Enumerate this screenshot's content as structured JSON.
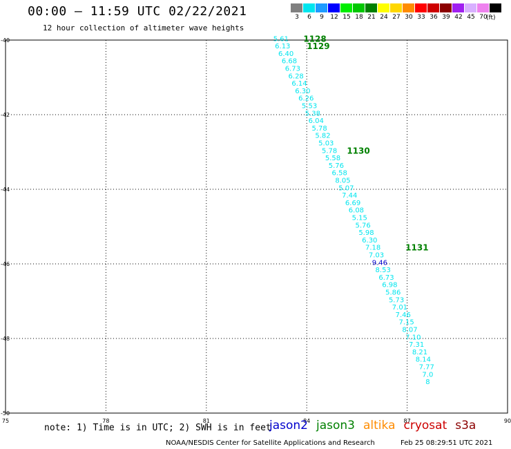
{
  "header": {
    "title": "00:00 – 11:59 UTC 02/22/2021",
    "subtitle": "12 hour collection of altimeter wave heights"
  },
  "scale": {
    "unit": "(ft)",
    "bins": [
      {
        "label": "3",
        "color": "#808080"
      },
      {
        "label": "6",
        "color": "#00e5ee"
      },
      {
        "label": "9",
        "color": "#1e9bff"
      },
      {
        "label": "12",
        "color": "#0000ff"
      },
      {
        "label": "15",
        "color": "#00ee00"
      },
      {
        "label": "18",
        "color": "#00c800"
      },
      {
        "label": "21",
        "color": "#008000"
      },
      {
        "label": "24",
        "color": "#ffff00"
      },
      {
        "label": "27",
        "color": "#ffd700"
      },
      {
        "label": "30",
        "color": "#ff8c00"
      },
      {
        "label": "33",
        "color": "#ff0000"
      },
      {
        "label": "36",
        "color": "#cd0000"
      },
      {
        "label": "39",
        "color": "#8b0000"
      },
      {
        "label": "42",
        "color": "#a020f0"
      },
      {
        "label": "45",
        "color": "#d8b0ff"
      },
      {
        "label": "70",
        "color": "#ee82ee"
      },
      {
        "label": "",
        "color": "#000000"
      }
    ]
  },
  "footer": {
    "note": "note: 1) Time is in UTC; 2) SWH is in feet",
    "credit": "NOAA/NESDIS Center for Satellite Applications and Research",
    "timestamp": "Feb 25 08:29:51 UTC 2021"
  },
  "legend": [
    {
      "name": "jason2",
      "color": "#0000cd"
    },
    {
      "name": "jason3",
      "color": "#008000"
    },
    {
      "name": "altika",
      "color": "#ff8c00"
    },
    {
      "name": "cryosat",
      "color": "#cd0000"
    },
    {
      "name": "s3a",
      "color": "#8b0000"
    }
  ],
  "chart_data": {
    "type": "scatter",
    "xlim": [
      75,
      90
    ],
    "ylim": [
      -50,
      -40
    ],
    "x_ticks": [
      "75",
      "78",
      "81",
      "84",
      "87",
      "90"
    ],
    "y_ticks": [
      "-40",
      "-42",
      "-44",
      "-46",
      "-48",
      "-50"
    ],
    "grid": true,
    "points": [
      {
        "x": 83.0,
        "y": -39.95,
        "label": "5.61",
        "color": "#00e5ee"
      },
      {
        "x": 83.05,
        "y": -40.15,
        "label": "6.13",
        "color": "#00e5ee"
      },
      {
        "x": 83.15,
        "y": -40.35,
        "label": "6.40",
        "color": "#00e5ee"
      },
      {
        "x": 83.25,
        "y": -40.55,
        "label": "6.68",
        "color": "#00e5ee"
      },
      {
        "x": 83.35,
        "y": -40.75,
        "label": "6.73",
        "color": "#00e5ee"
      },
      {
        "x": 83.45,
        "y": -40.95,
        "label": "6.28",
        "color": "#00e5ee"
      },
      {
        "x": 83.55,
        "y": -41.15,
        "label": "6.14",
        "color": "#00e5ee"
      },
      {
        "x": 83.65,
        "y": -41.35,
        "label": "6.30",
        "color": "#00e5ee"
      },
      {
        "x": 83.75,
        "y": -41.55,
        "label": "6.26",
        "color": "#00e5ee"
      },
      {
        "x": 83.85,
        "y": -41.75,
        "label": "5.53",
        "color": "#00e5ee"
      },
      {
        "x": 83.95,
        "y": -41.95,
        "label": "5.38",
        "color": "#00e5ee"
      },
      {
        "x": 84.05,
        "y": -42.15,
        "label": "6.04",
        "color": "#00e5ee"
      },
      {
        "x": 84.15,
        "y": -42.35,
        "label": "5.78",
        "color": "#00e5ee"
      },
      {
        "x": 84.25,
        "y": -42.55,
        "label": "5.82",
        "color": "#00e5ee"
      },
      {
        "x": 84.35,
        "y": -42.75,
        "label": "5.03",
        "color": "#00e5ee"
      },
      {
        "x": 84.45,
        "y": -42.95,
        "label": "5.78",
        "color": "#00e5ee"
      },
      {
        "x": 84.55,
        "y": -43.15,
        "label": "5.58",
        "color": "#00e5ee"
      },
      {
        "x": 84.65,
        "y": -43.35,
        "label": "5.76",
        "color": "#00e5ee"
      },
      {
        "x": 84.75,
        "y": -43.55,
        "label": "6.58",
        "color": "#00e5ee"
      },
      {
        "x": 84.85,
        "y": -43.75,
        "label": "8.05",
        "color": "#00e5ee"
      },
      {
        "x": 84.95,
        "y": -43.95,
        "label": "5.07",
        "color": "#00e5ee"
      },
      {
        "x": 85.05,
        "y": -44.15,
        "label": "7.44",
        "color": "#00e5ee"
      },
      {
        "x": 85.15,
        "y": -44.35,
        "label": "6.69",
        "color": "#00e5ee"
      },
      {
        "x": 85.25,
        "y": -44.55,
        "label": "6.08",
        "color": "#00e5ee"
      },
      {
        "x": 85.35,
        "y": -44.75,
        "label": "5.15",
        "color": "#00e5ee"
      },
      {
        "x": 85.45,
        "y": -44.95,
        "label": "5.76",
        "color": "#00e5ee"
      },
      {
        "x": 85.55,
        "y": -45.15,
        "label": "5.98",
        "color": "#00e5ee"
      },
      {
        "x": 85.65,
        "y": -45.35,
        "label": "6.30",
        "color": "#00e5ee"
      },
      {
        "x": 85.75,
        "y": -45.55,
        "label": "7.18",
        "color": "#00e5ee"
      },
      {
        "x": 85.85,
        "y": -45.75,
        "label": "7.03",
        "color": "#00e5ee"
      },
      {
        "x": 85.95,
        "y": -45.95,
        "label": "9.46",
        "color": "#0000cd"
      },
      {
        "x": 86.05,
        "y": -46.15,
        "label": "8.53",
        "color": "#00e5ee"
      },
      {
        "x": 86.15,
        "y": -46.35,
        "label": "6.73",
        "color": "#00e5ee"
      },
      {
        "x": 86.25,
        "y": -46.55,
        "label": "6.98",
        "color": "#00e5ee"
      },
      {
        "x": 86.35,
        "y": -46.75,
        "label": "5.86",
        "color": "#00e5ee"
      },
      {
        "x": 86.45,
        "y": -46.95,
        "label": "5.73",
        "color": "#00e5ee"
      },
      {
        "x": 86.55,
        "y": -47.15,
        "label": "7.01",
        "color": "#00e5ee"
      },
      {
        "x": 86.65,
        "y": -47.35,
        "label": "7.46",
        "color": "#00e5ee"
      },
      {
        "x": 86.75,
        "y": -47.55,
        "label": "7.15",
        "color": "#00e5ee"
      },
      {
        "x": 86.85,
        "y": -47.75,
        "label": "8.07",
        "color": "#00e5ee"
      },
      {
        "x": 86.95,
        "y": -47.95,
        "label": "7.10",
        "color": "#00e5ee"
      },
      {
        "x": 87.05,
        "y": -48.15,
        "label": "7.31",
        "color": "#00e5ee"
      },
      {
        "x": 87.15,
        "y": -48.35,
        "label": "8.21",
        "color": "#00e5ee"
      },
      {
        "x": 87.25,
        "y": -48.55,
        "label": "8.14",
        "color": "#00e5ee"
      },
      {
        "x": 87.35,
        "y": -48.75,
        "label": "7.77",
        "color": "#00e5ee"
      },
      {
        "x": 87.45,
        "y": -48.95,
        "label": "7.0",
        "color": "#00e5ee"
      },
      {
        "x": 87.55,
        "y": -49.15,
        "label": "8",
        "color": "#00e5ee"
      }
    ],
    "time_labels": [
      {
        "x": 83.9,
        "y": -39.95,
        "label": "1128",
        "color": "#008000"
      },
      {
        "x": 84.0,
        "y": -40.15,
        "label": "1129",
        "color": "#008000"
      },
      {
        "x": 85.2,
        "y": -42.95,
        "label": "1130",
        "color": "#008000"
      },
      {
        "x": 86.95,
        "y": -45.55,
        "label": "1131",
        "color": "#008000"
      }
    ]
  }
}
